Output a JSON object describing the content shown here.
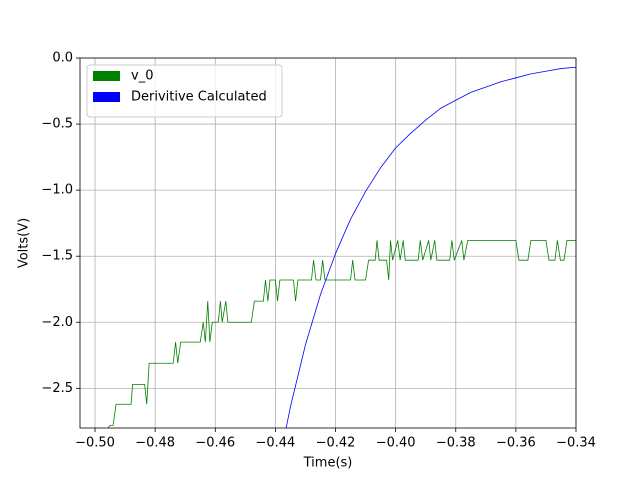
{
  "chart_data": {
    "type": "line",
    "xlabel": "Time(s)",
    "ylabel": "Volts(V)",
    "xlim": [
      -0.505,
      -0.34
    ],
    "ylim": [
      -2.8,
      0
    ],
    "xticks": [
      {
        "value": -0.5,
        "label": "−0.50"
      },
      {
        "value": -0.48,
        "label": "−0.48"
      },
      {
        "value": -0.46,
        "label": "−0.46"
      },
      {
        "value": -0.44,
        "label": "−0.44"
      },
      {
        "value": -0.42,
        "label": "−0.42"
      },
      {
        "value": -0.4,
        "label": "−0.40"
      },
      {
        "value": -0.38,
        "label": "−0.38"
      },
      {
        "value": -0.36,
        "label": "−0.36"
      },
      {
        "value": -0.34,
        "label": "−0.34"
      }
    ],
    "yticks": [
      {
        "value": 0,
        "label": "0.0"
      },
      {
        "value": -0.5,
        "label": "−0.5"
      },
      {
        "value": -1,
        "label": "−1.0"
      },
      {
        "value": -1.5,
        "label": "−1.5"
      },
      {
        "value": -2,
        "label": "−2.0"
      },
      {
        "value": -2.5,
        "label": "−2.5"
      }
    ],
    "grid": true,
    "legend": "upper left",
    "series": [
      {
        "name": "v_0",
        "color": "#008000",
        "x": [
          -0.4957,
          -0.495,
          -0.494,
          -0.493,
          -0.488,
          -0.4875,
          -0.4835,
          -0.4828,
          -0.482,
          -0.474,
          -0.4732,
          -0.4725,
          -0.4715,
          -0.465,
          -0.464,
          -0.4633,
          -0.4625,
          -0.4618,
          -0.461,
          -0.459,
          -0.4583,
          -0.4577,
          -0.4565,
          -0.4558,
          -0.448,
          -0.447,
          -0.444,
          -0.4433,
          -0.4425,
          -0.4418,
          -0.44,
          -0.4393,
          -0.4385,
          -0.434,
          -0.4333,
          -0.4325,
          -0.428,
          -0.4273,
          -0.4265,
          -0.425,
          -0.4243,
          -0.4235,
          -0.415,
          -0.4143,
          -0.4135,
          -0.41,
          -0.409,
          -0.4068,
          -0.4062,
          -0.4055,
          -0.403,
          -0.4023,
          -0.4017,
          -0.401,
          -0.3993,
          -0.3985,
          -0.3975,
          -0.3968,
          -0.3925,
          -0.3918,
          -0.391,
          -0.389,
          -0.3883,
          -0.387,
          -0.3863,
          -0.382,
          -0.3813,
          -0.3805,
          -0.378,
          -0.3773,
          -0.376,
          -0.37,
          -0.36,
          -0.359,
          -0.356,
          -0.355,
          -0.35,
          -0.349,
          -0.347,
          -0.3462,
          -0.3452,
          -0.344,
          -0.343,
          -0.34
        ],
        "values": [
          -2.8,
          -2.78,
          -2.78,
          -2.62,
          -2.62,
          -2.47,
          -2.47,
          -2.62,
          -2.31,
          -2.31,
          -2.15,
          -2.31,
          -2.15,
          -2.15,
          -2.0,
          -2.15,
          -1.84,
          -2.15,
          -2.0,
          -2.0,
          -1.84,
          -2.0,
          -1.84,
          -2.0,
          -2.0,
          -1.84,
          -1.84,
          -1.68,
          -1.84,
          -1.68,
          -1.68,
          -1.84,
          -1.68,
          -1.68,
          -1.84,
          -1.68,
          -1.68,
          -1.53,
          -1.68,
          -1.68,
          -1.53,
          -1.68,
          -1.68,
          -1.53,
          -1.68,
          -1.68,
          -1.53,
          -1.53,
          -1.38,
          -1.53,
          -1.53,
          -1.68,
          -1.38,
          -1.53,
          -1.38,
          -1.53,
          -1.38,
          -1.53,
          -1.53,
          -1.38,
          -1.53,
          -1.38,
          -1.53,
          -1.38,
          -1.53,
          -1.53,
          -1.38,
          -1.53,
          -1.38,
          -1.53,
          -1.38,
          -1.38,
          -1.38,
          -1.53,
          -1.53,
          -1.38,
          -1.38,
          -1.53,
          -1.53,
          -1.38,
          -1.53,
          -1.53,
          -1.38,
          -1.38
        ]
      },
      {
        "name": "Derivitive Calculated",
        "color": "#0000ff",
        "x": [
          -0.44,
          -0.435,
          -0.43,
          -0.425,
          -0.42,
          -0.415,
          -0.41,
          -0.405,
          -0.4,
          -0.395,
          -0.39,
          -0.385,
          -0.38,
          -0.375,
          -0.37,
          -0.365,
          -0.36,
          -0.355,
          -0.35,
          -0.345,
          -0.34
        ],
        "values": [
          -3.2,
          -2.64,
          -2.17,
          -1.79,
          -1.48,
          -1.22,
          -1.01,
          -0.83,
          -0.68,
          -0.57,
          -0.47,
          -0.38,
          -0.32,
          -0.26,
          -0.22,
          -0.18,
          -0.15,
          -0.12,
          -0.1,
          -0.08,
          -0.07
        ]
      }
    ]
  }
}
